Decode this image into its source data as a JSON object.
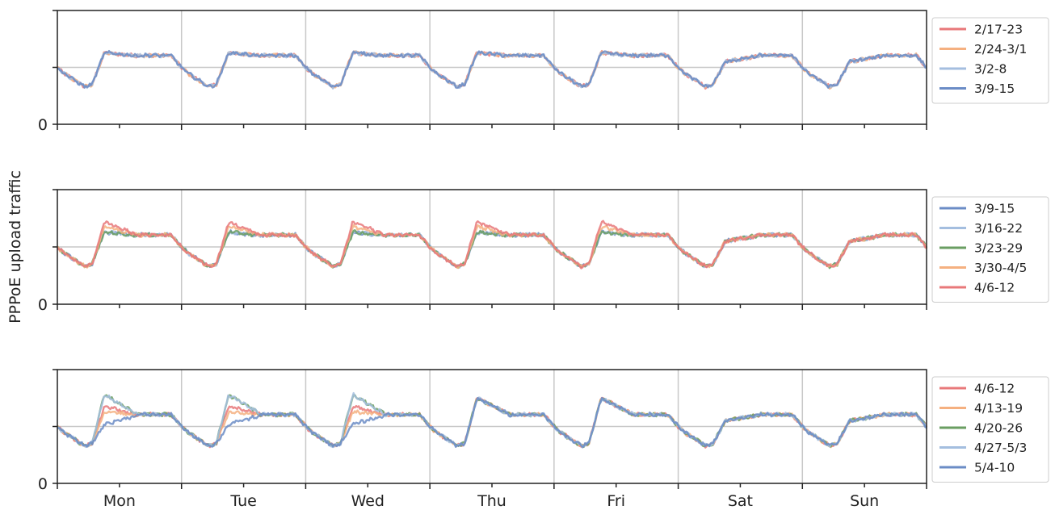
{
  "chart_data": {
    "type": "line",
    "ylabel": "PPPoE upload traffic",
    "x_tick_labels": [
      "Mon",
      "Tue",
      "Wed",
      "Thu",
      "Fri",
      "Sat",
      "Sun"
    ],
    "y_tick_label": "0",
    "grid": "vertical lines at day boundaries, horizontal reference line at half scale",
    "legend_placement": "right, outside each panel",
    "panels": [
      {
        "ylim": [
          0,
          1
        ],
        "series": [
          {
            "name": "2/17-23",
            "color": "#e8787a"
          },
          {
            "name": "2/24-3/1",
            "color": "#f5b080"
          },
          {
            "name": "3/2-8",
            "color": "#a4bedf"
          },
          {
            "name": "3/9-15",
            "color": "#6b8cc6"
          }
        ]
      },
      {
        "ylim": [
          0,
          1
        ],
        "series": [
          {
            "name": "3/9-15",
            "color": "#6b8cc6"
          },
          {
            "name": "3/16-22",
            "color": "#a4bedf"
          },
          {
            "name": "3/23-29",
            "color": "#6a9e62"
          },
          {
            "name": "3/30-4/5",
            "color": "#f5b080"
          },
          {
            "name": "4/6-12",
            "color": "#e8787a"
          }
        ]
      },
      {
        "ylim": [
          0,
          1
        ],
        "series": [
          {
            "name": "4/6-12",
            "color": "#e8787a"
          },
          {
            "name": "4/13-19",
            "color": "#f5b080"
          },
          {
            "name": "4/20-26",
            "color": "#6a9e62"
          },
          {
            "name": "4/27-5/3",
            "color": "#a4bedf"
          },
          {
            "name": "5/4-10",
            "color": "#6b8cc6"
          }
        ]
      }
    ]
  }
}
